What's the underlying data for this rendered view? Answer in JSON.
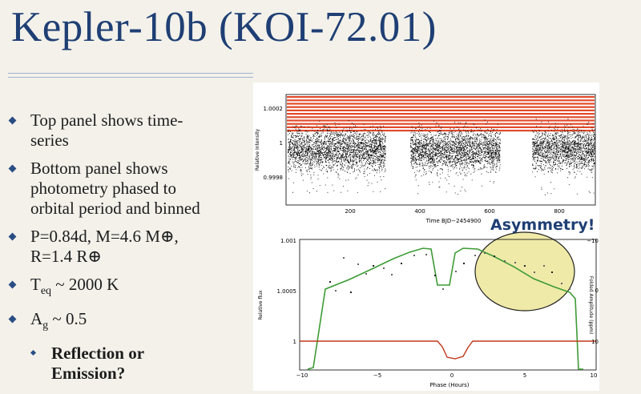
{
  "slide": {
    "title": "Kepler-10b (KOI-72.01)",
    "bullets": [
      {
        "lines": [
          "Top panel shows time-",
          "series"
        ]
      },
      {
        "lines": [
          "Bottom panel shows",
          "photometry phased to",
          "orbital period and binned"
        ]
      },
      {
        "lines": [
          "P=0.84d, M=4.6 M⊕,",
          "R=1.4 R⊕"
        ]
      },
      {
        "lines": [
          "T",
          "eq",
          " ~ 2000 K"
        ]
      },
      {
        "lines": [
          "A",
          "g",
          " ~ 0.5"
        ]
      }
    ],
    "sub_bullet": {
      "lines": [
        "Reflection or",
        "Emission?"
      ]
    },
    "annotation": "Asymmetry!"
  },
  "colors": {
    "title": "#1f3f74",
    "bullet": "#2a4e84",
    "model_line": "#3d9b35",
    "residual_line": "#c0391b",
    "highlight_fill": "#efeaa8",
    "stripe": "#e24a2a"
  },
  "top_plot": {
    "ylabel": "Relative Intensity",
    "xlabel": "Time BJD−2454900",
    "yticks": [
      "1.0002",
      "1",
      "0.9998"
    ],
    "xticks": [
      "200",
      "400",
      "600",
      "800"
    ]
  },
  "bottom_plot": {
    "ylabel_left": "Relative flux",
    "ylabel_right": "Folded Amplitude (ppm)",
    "xlabel": "Phase (Hours)",
    "yticks_left": [
      "1.001",
      "1.0005",
      "1"
    ],
    "yticks_right": [
      "−10",
      "0",
      "10"
    ],
    "xticks": [
      "−10",
      "−5",
      "0",
      "5",
      "10"
    ]
  }
}
